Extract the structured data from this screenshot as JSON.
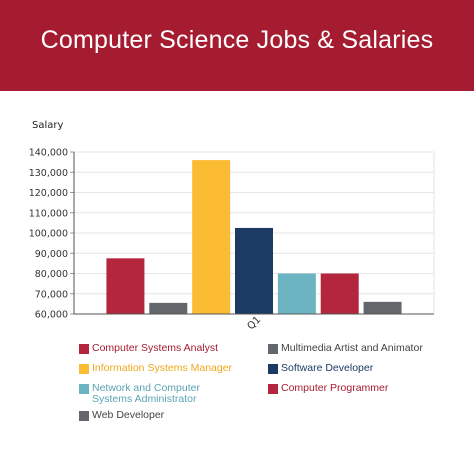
{
  "header": {
    "title": "Computer Science Jobs & Salaries",
    "background": "#a51c30"
  },
  "chart_data": {
    "type": "bar",
    "ylabel": "Salary",
    "categories": [
      "Q1"
    ],
    "ylim": [
      60000,
      140000
    ],
    "yticks": [
      "60,000",
      "70,000",
      "80,000",
      "90,000",
      "100,000",
      "110,000",
      "120,000",
      "130,000",
      "140,000"
    ],
    "grid": true,
    "legend_position": "bottom",
    "series": [
      {
        "name": "Computer Systems Analyst",
        "values": [
          87500
        ],
        "color": "#b3263e",
        "legend_text_color": "#a51c30"
      },
      {
        "name": "Multimedia Artist and Animator",
        "values": [
          65500
        ],
        "color": "#63666a",
        "legend_text_color": "#444444"
      },
      {
        "name": "Information Systems Manager",
        "values": [
          136000
        ],
        "color": "#fbbc33",
        "legend_text_color": "#f0a81e"
      },
      {
        "name": "Software Developer",
        "values": [
          102500
        ],
        "color": "#1c3b64",
        "legend_text_color": "#1c3b64"
      },
      {
        "name": "Network and Computer Systems Administrator",
        "values": [
          80000
        ],
        "color": "#6cb4c2",
        "legend_text_color": "#5aa3b4"
      },
      {
        "name": "Computer Programmer",
        "values": [
          80000
        ],
        "color": "#b3263e",
        "legend_text_color": "#a51c30"
      },
      {
        "name": "Web Developer",
        "values": [
          66000
        ],
        "color": "#63666a",
        "legend_text_color": "#444444"
      }
    ]
  }
}
